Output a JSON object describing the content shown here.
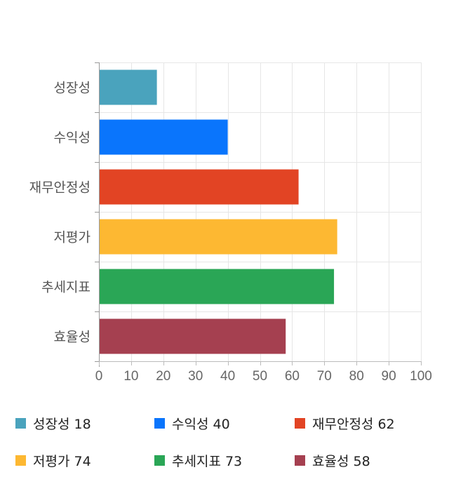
{
  "chart_data": {
    "type": "bar",
    "orientation": "horizontal",
    "categories": [
      "성장성",
      "수익성",
      "재무안정성",
      "저평가",
      "추세지표",
      "효율성"
    ],
    "values": [
      18,
      40,
      62,
      74,
      73,
      58
    ],
    "colors": [
      "#4aa3bd",
      "#0a75fc",
      "#e24424",
      "#fdb832",
      "#2aa656",
      "#a54050"
    ],
    "xlim": [
      0,
      100
    ],
    "xticks": [
      0,
      10,
      20,
      30,
      40,
      50,
      60,
      70,
      80,
      90,
      100
    ],
    "grid": true,
    "legend_position": "bottom",
    "title": "",
    "xlabel": "",
    "ylabel": ""
  },
  "legend": {
    "items": [
      {
        "label": "성장성 18",
        "color": "#4aa3bd"
      },
      {
        "label": "수익성 40",
        "color": "#0a75fc"
      },
      {
        "label": "재무안정성 62",
        "color": "#e24424"
      },
      {
        "label": "저평가 74",
        "color": "#fdb832"
      },
      {
        "label": "추세지표 73",
        "color": "#2aa656"
      },
      {
        "label": "효율성 58",
        "color": "#a54050"
      }
    ]
  }
}
